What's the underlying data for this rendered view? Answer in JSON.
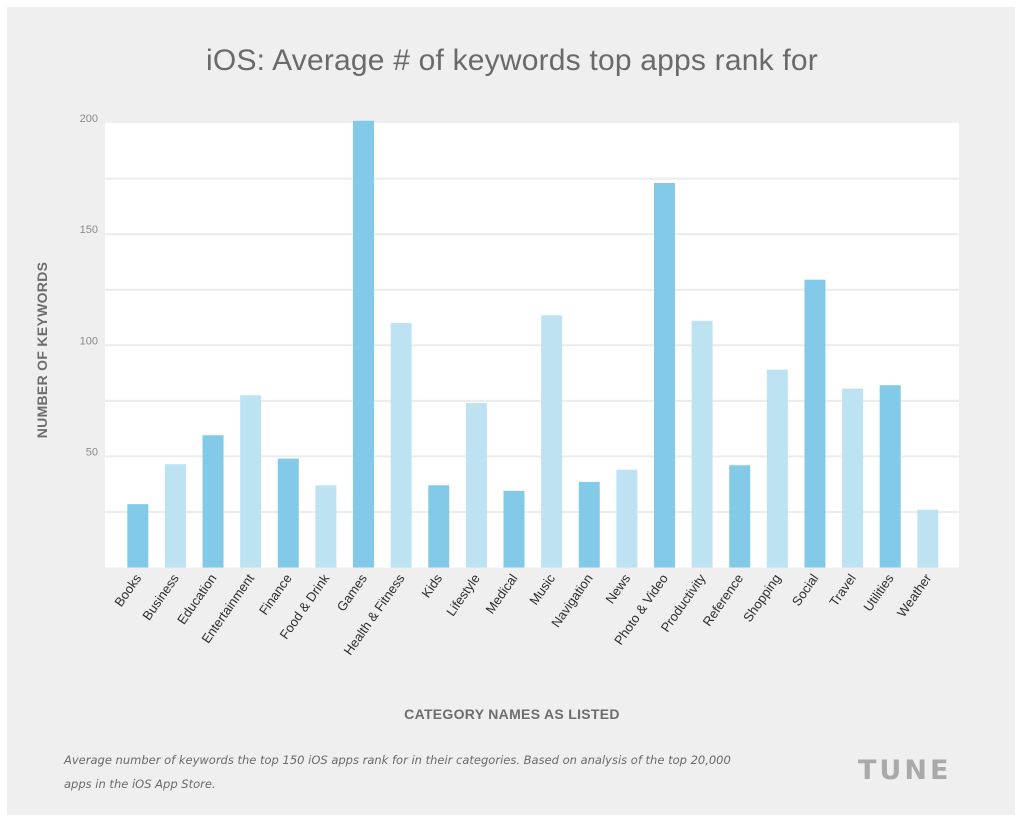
{
  "chart_data": {
    "type": "bar",
    "title": "iOS: Average # of keywords top apps rank for",
    "xlabel": "CATEGORY NAMES AS LISTED",
    "ylabel": "NUMBER OF KEYWORDS",
    "ylim": [
      0,
      200
    ],
    "yticks": [
      50,
      100,
      150,
      200
    ],
    "gridlines_every": 25,
    "grid": true,
    "categories": [
      "Books",
      "Business",
      "Education",
      "Entertainment",
      "Finance",
      "Food & Drink",
      "Games",
      "Health & Fitness",
      "Kids",
      "Lifestyle",
      "Medical",
      "Music",
      "Navigation",
      "News",
      "Photo & Video",
      "Productivity",
      "Reference",
      "Shopping",
      "Social",
      "Travel",
      "Utilities",
      "Weather"
    ],
    "values": [
      28.5,
      46.5,
      59.5,
      77.5,
      49,
      37,
      201,
      110,
      37,
      74,
      34.5,
      113.5,
      38.5,
      44,
      173,
      111,
      46,
      89,
      129.5,
      80.5,
      82,
      26
    ],
    "colors": {
      "dark": "#82cae8",
      "light": "#bde3f3"
    },
    "color_pattern": "alternating dark/light starting with dark"
  },
  "caption": {
    "line1": "Average number of keywords the top 150 iOS apps rank for in their categories. Based on analysis of the top 20,000",
    "line2": "apps in the iOS App Store."
  },
  "logo": {
    "text": "TUNE"
  }
}
